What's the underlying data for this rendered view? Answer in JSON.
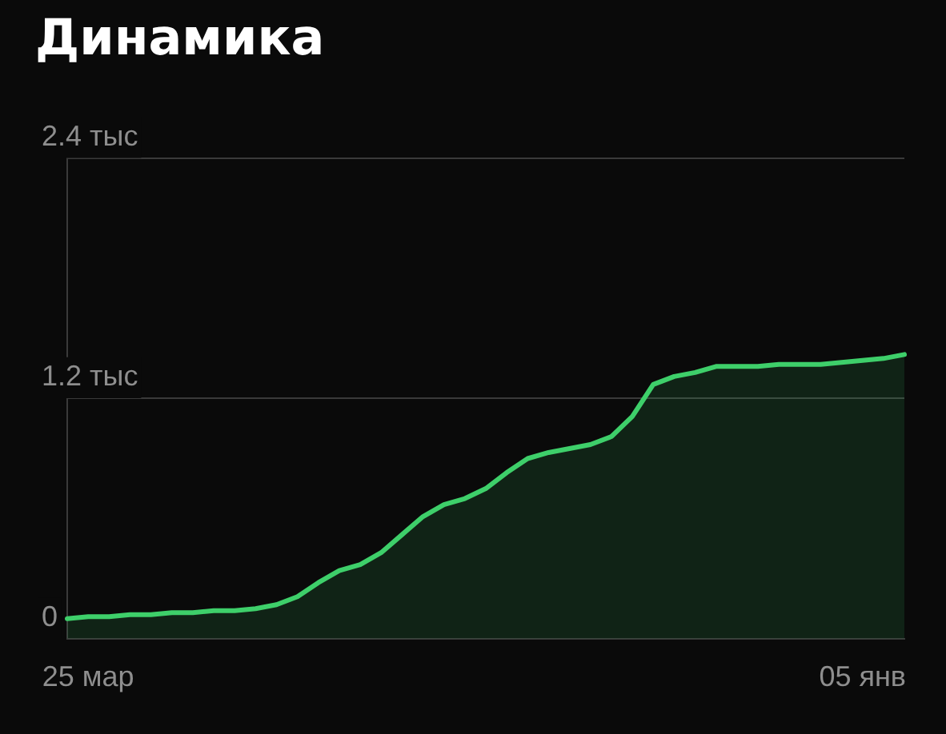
{
  "chart_data": {
    "type": "area",
    "title": "Динамика",
    "categories": [
      null,
      "25 мар",
      null,
      null,
      null,
      null,
      null,
      null,
      null,
      null,
      null,
      null,
      null,
      null,
      null,
      null,
      null,
      null,
      null,
      null,
      null,
      null,
      null,
      null,
      null,
      null,
      null,
      null,
      null,
      null,
      null,
      null,
      null,
      null,
      null,
      null,
      null,
      null,
      "05 янв",
      null,
      null
    ],
    "series": [
      {
        "color": "#3ecf6a",
        "values": [
          0.1,
          0.11,
          0.11,
          0.12,
          0.12,
          0.13,
          0.13,
          0.14,
          0.14,
          0.15,
          0.17,
          0.21,
          0.28,
          0.34,
          0.37,
          0.43,
          0.52,
          0.61,
          0.67,
          0.7,
          0.75,
          0.83,
          0.9,
          0.93,
          0.95,
          0.97,
          1.01,
          1.11,
          1.27,
          1.31,
          1.33,
          1.36,
          1.36,
          1.36,
          1.37,
          1.37,
          1.37,
          1.38,
          1.39,
          1.4,
          1.42
        ]
      }
    ],
    "ylim": [
      0,
      2.4
    ],
    "yticks": [
      0,
      {
        "value": 1.2,
        "label": "1.2 тыс"
      },
      {
        "value": 2.4,
        "label": "2.4 тыс"
      }
    ],
    "grid": "y",
    "legend": false,
    "marker": "none",
    "line_style": "solid"
  }
}
